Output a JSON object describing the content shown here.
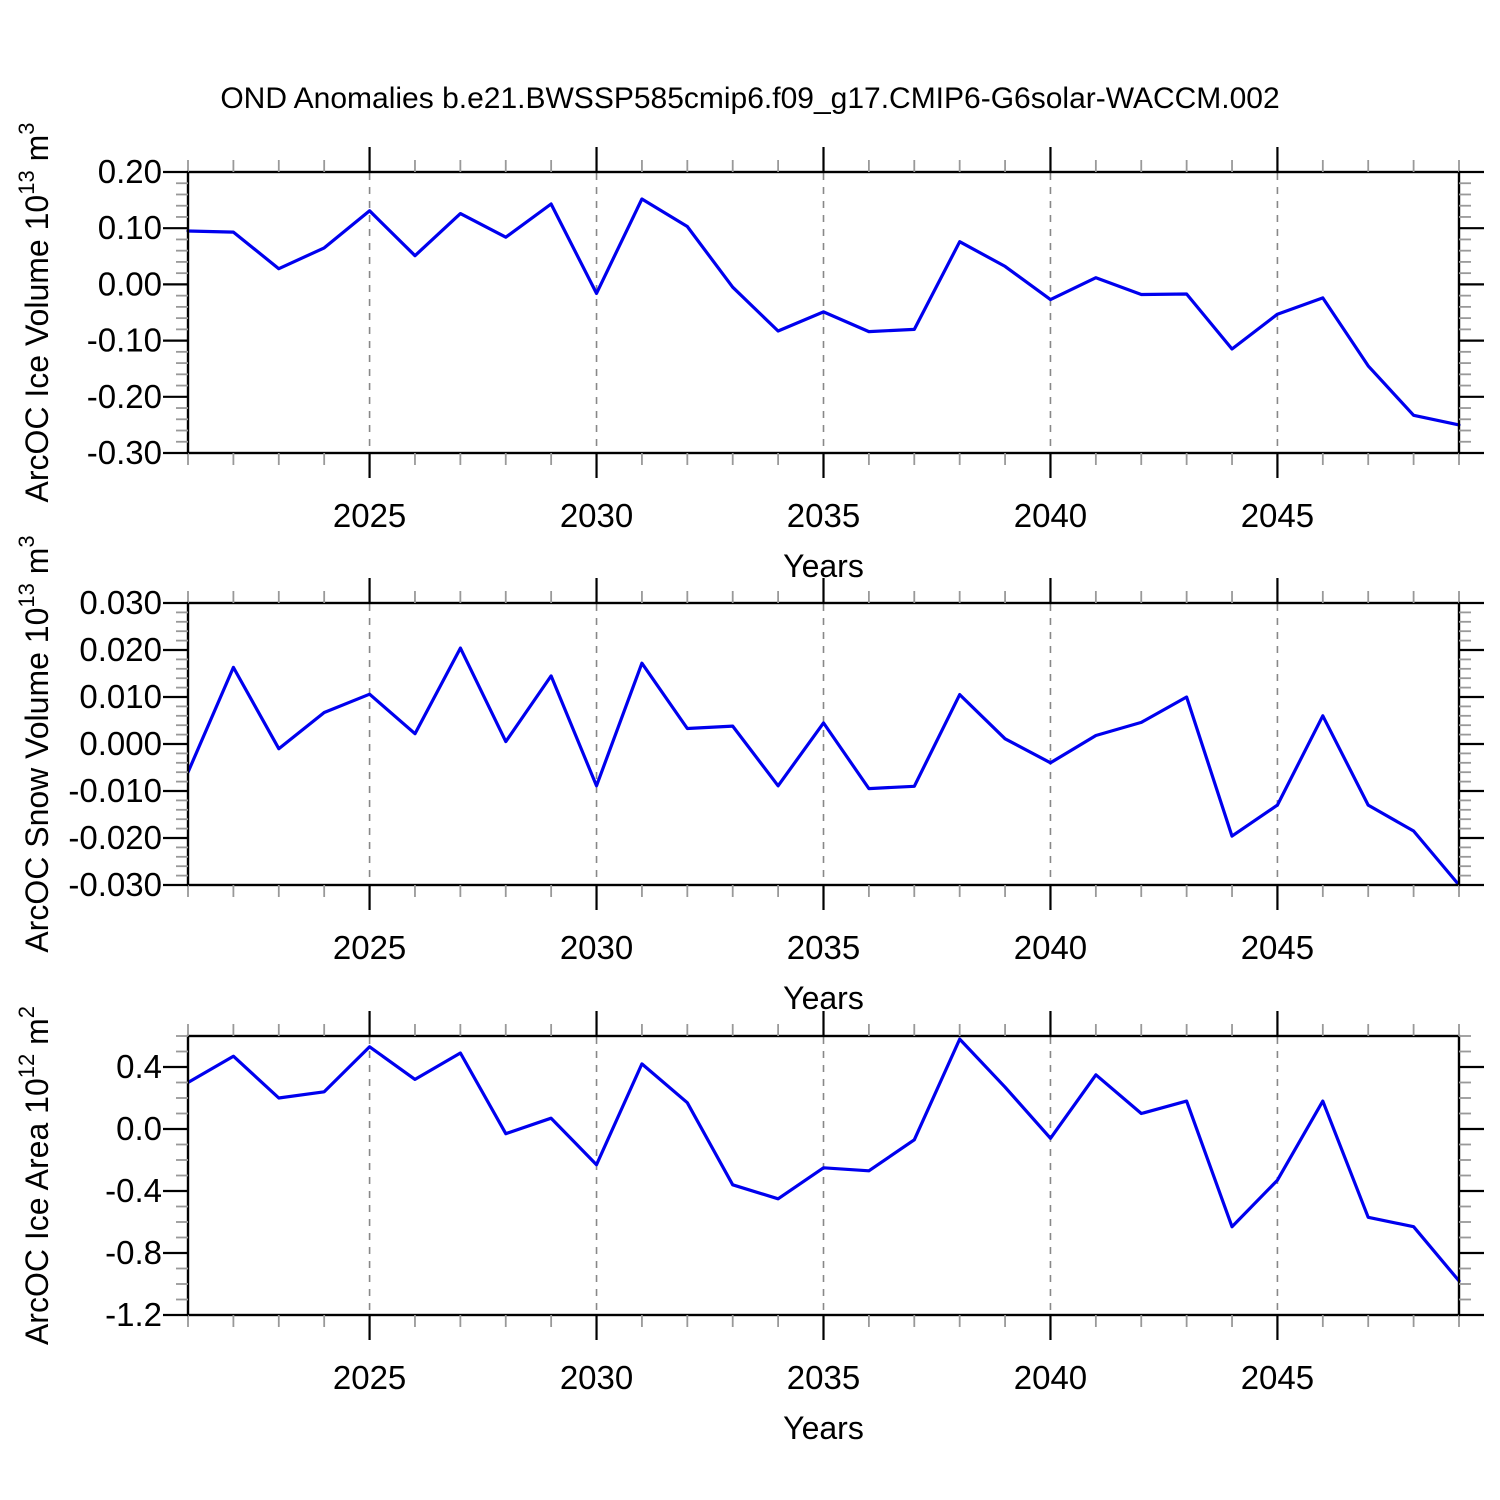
{
  "figure": {
    "title": "OND Anomalies b.e21.BWSSP585cmip6.f09_g17.CMIP6-G6solar-WACCM.002",
    "xlabel": "Years",
    "line_color": "#0000ee",
    "grid_color": "#888888",
    "axis_color": "#000000",
    "minor_tick_color": "#999999",
    "x_major_ticks": [
      2025,
      2030,
      2035,
      2040,
      2045
    ],
    "x_minor_step": 1,
    "x_range": [
      2021,
      2049
    ]
  },
  "chart_data": [
    {
      "type": "line",
      "title": "",
      "ylabel": "ArcOC Ice Volume 10¹³ m³",
      "ylabel_parts": {
        "base": "ArcOC Ice Volume 10",
        "exp": "13",
        "mid": " m",
        "exp2": "3"
      },
      "xlabel": "Years",
      "legend": "none",
      "grid": "vertical-dashed",
      "ylim": [
        -0.3,
        0.2
      ],
      "ytick_step": 0.1,
      "yminor_step": 0.02,
      "ytick_decimals": 2,
      "xticks": [
        2025,
        2030,
        2035,
        2040,
        2045
      ],
      "x": [
        2021,
        2022,
        2023,
        2024,
        2025,
        2026,
        2027,
        2028,
        2029,
        2030,
        2031,
        2032,
        2033,
        2034,
        2035,
        2036,
        2037,
        2038,
        2039,
        2040,
        2041,
        2042,
        2043,
        2044,
        2045,
        2046,
        2047,
        2048,
        2049
      ],
      "values": [
        0.095,
        0.093,
        0.028,
        0.065,
        0.131,
        0.051,
        0.126,
        0.084,
        0.143,
        -0.016,
        0.152,
        0.103,
        -0.005,
        -0.083,
        -0.049,
        -0.084,
        -0.08,
        0.076,
        0.032,
        -0.027,
        0.012,
        -0.018,
        -0.017,
        -0.115,
        -0.053,
        -0.024,
        -0.145,
        -0.233,
        -0.25
      ]
    },
    {
      "type": "line",
      "title": "",
      "ylabel": "ArcOC Snow Volume 10¹³ m³",
      "ylabel_parts": {
        "base": "ArcOC Snow Volume 10",
        "exp": "13",
        "mid": " m",
        "exp2": "3"
      },
      "xlabel": "Years",
      "legend": "none",
      "grid": "vertical-dashed",
      "ylim": [
        -0.03,
        0.03
      ],
      "ytick_step": 0.01,
      "yminor_step": 0.002,
      "ytick_decimals": 3,
      "xticks": [
        2025,
        2030,
        2035,
        2040,
        2045
      ],
      "x": [
        2021,
        2022,
        2023,
        2024,
        2025,
        2026,
        2027,
        2028,
        2029,
        2030,
        2031,
        2032,
        2033,
        2034,
        2035,
        2036,
        2037,
        2038,
        2039,
        2040,
        2041,
        2042,
        2043,
        2044,
        2045,
        2046,
        2047,
        2048,
        2049
      ],
      "values": [
        -0.006,
        0.0163,
        -0.001,
        0.0067,
        0.0106,
        0.0022,
        0.0204,
        0.0005,
        0.0145,
        -0.0089,
        0.0172,
        0.0033,
        0.0038,
        -0.0089,
        0.0045,
        -0.0095,
        -0.009,
        0.0105,
        0.0011,
        -0.004,
        0.0018,
        0.0046,
        0.01,
        -0.0196,
        -0.013,
        0.006,
        -0.013,
        -0.0185,
        -0.03
      ]
    },
    {
      "type": "line",
      "title": "",
      "ylabel": "ArcOC Ice Area 10¹² m²",
      "ylabel_parts": {
        "base": "ArcOC Ice Area 10",
        "exp": "12",
        "mid": " m",
        "exp2": "2"
      },
      "xlabel": "Years",
      "legend": "none",
      "grid": "vertical-dashed",
      "ylim": [
        -1.2,
        0.6
      ],
      "ytick_step": 0.4,
      "yminor_step": 0.1,
      "ytick_decimals": 1,
      "xticks": [
        2025,
        2030,
        2035,
        2040,
        2045
      ],
      "x": [
        2021,
        2022,
        2023,
        2024,
        2025,
        2026,
        2027,
        2028,
        2029,
        2030,
        2031,
        2032,
        2033,
        2034,
        2035,
        2036,
        2037,
        2038,
        2039,
        2040,
        2041,
        2042,
        2043,
        2044,
        2045,
        2046,
        2047,
        2048,
        2049
      ],
      "values": [
        0.3,
        0.47,
        0.2,
        0.24,
        0.53,
        0.32,
        0.49,
        -0.03,
        0.07,
        -0.23,
        0.42,
        0.17,
        -0.36,
        -0.45,
        -0.25,
        -0.27,
        -0.07,
        0.58,
        0.27,
        -0.06,
        0.35,
        0.1,
        0.18,
        -0.63,
        -0.33,
        0.18,
        -0.57,
        -0.63,
        -0.98
      ]
    }
  ]
}
